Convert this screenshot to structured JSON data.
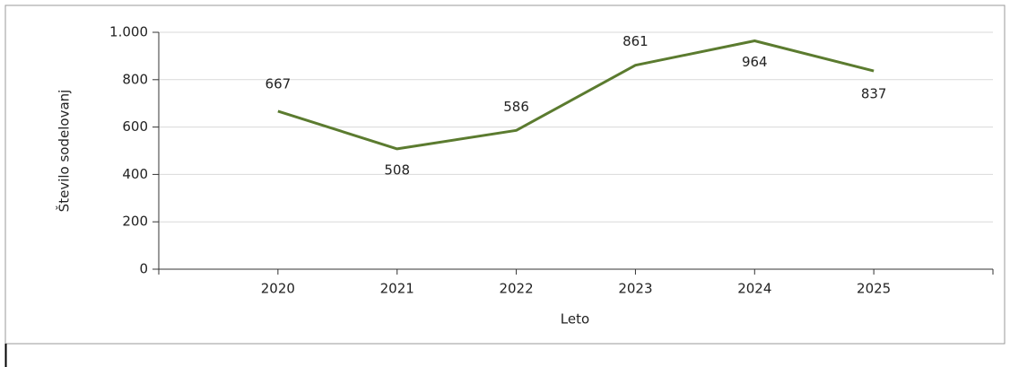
{
  "chart_data": {
    "type": "line",
    "x_label": "Leto",
    "y_label": "Število sodelovanj",
    "categories": [
      "2020",
      "2021",
      "2022",
      "2023",
      "2024",
      "2025"
    ],
    "series": [
      {
        "name": "Število sodelovanj",
        "color": "#5b7b2f",
        "values": [
          667,
          508,
          586,
          861,
          964,
          837
        ]
      }
    ],
    "ylim": [
      0,
      1000
    ],
    "yticks": [
      0,
      200,
      400,
      600,
      800,
      {
        "value": 1000,
        "label": "1.000"
      }
    ],
    "grid": true
  }
}
